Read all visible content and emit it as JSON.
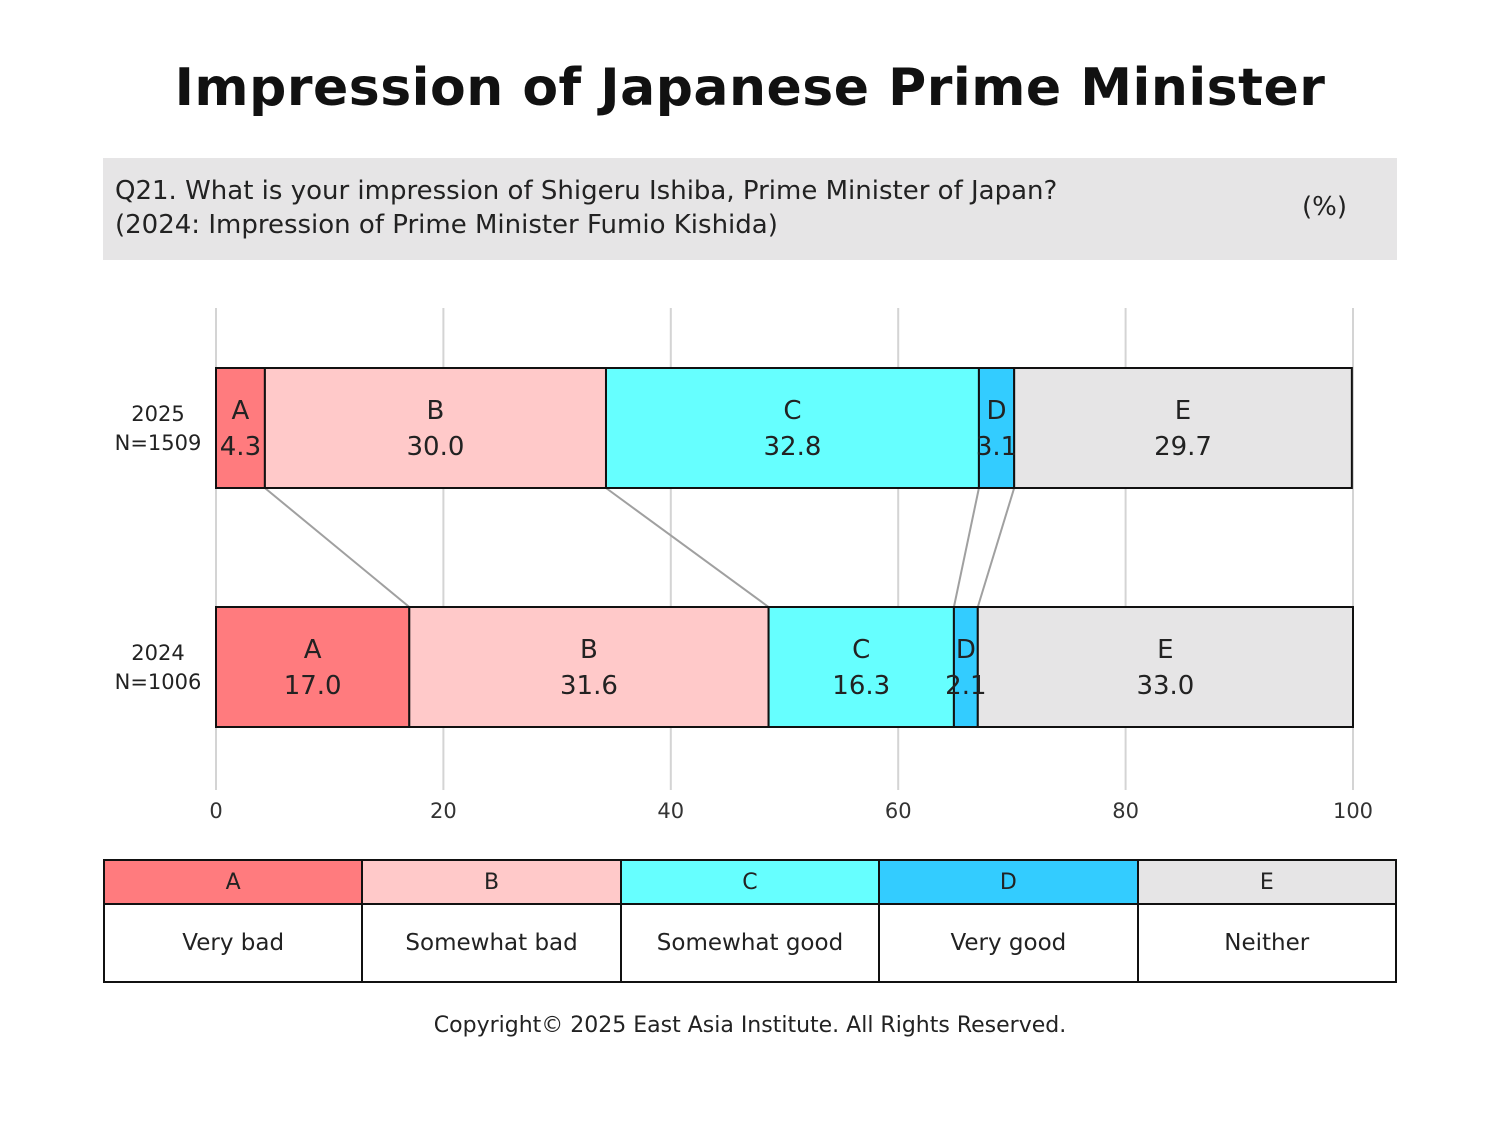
{
  "title": "Impression of Japanese Prime Minister",
  "question": {
    "line1": "Q21. What is your impression of Shigeru Ishiba, Prime Minister of Japan?",
    "line2": "(2024: Impression of Prime Minister Fumio Kishida)",
    "unit": "(%)"
  },
  "chart_data": {
    "type": "bar",
    "orientation": "horizontal",
    "stacked": true,
    "xlim": [
      0,
      100
    ],
    "xticks": [
      0,
      20,
      40,
      60,
      80,
      100
    ],
    "grid": true,
    "connector_lines": true,
    "categories": [
      {
        "line1": "2025",
        "line2": "N=1509"
      },
      {
        "line1": "2024",
        "line2": "N=1006"
      }
    ],
    "series": [
      {
        "code": "A",
        "name": "Very bad",
        "color": "#ff7b7e",
        "values": [
          4.3,
          17.0
        ]
      },
      {
        "code": "B",
        "name": "Somewhat bad",
        "color": "#ffc9c9",
        "values": [
          30.0,
          31.6
        ]
      },
      {
        "code": "C",
        "name": "Somewhat good",
        "color": "#66ffff",
        "values": [
          32.8,
          16.3
        ]
      },
      {
        "code": "D",
        "name": "Very good",
        "color": "#33ccff",
        "values": [
          3.1,
          2.1
        ]
      },
      {
        "code": "E",
        "name": "Neither",
        "color": "#e6e5e6",
        "values": [
          29.7,
          33.0
        ]
      }
    ]
  },
  "copyright": "Copyright© 2025 East Asia Institute. All Rights Reserved."
}
